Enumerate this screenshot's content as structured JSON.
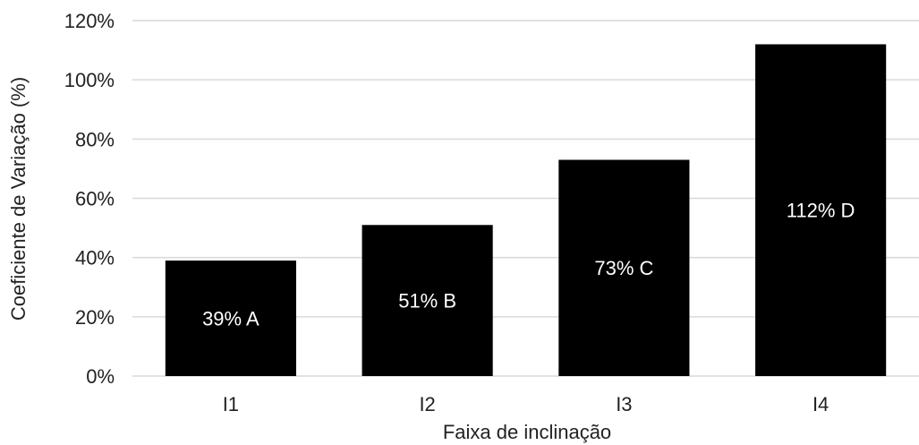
{
  "chart_data": {
    "type": "bar",
    "categories": [
      "I1",
      "I2",
      "I3",
      "I4"
    ],
    "values": [
      39,
      51,
      73,
      112
    ],
    "data_labels": [
      "39% A",
      "51% B",
      "73% C",
      "112% D"
    ],
    "xlabel": "Faixa de inclinação",
    "ylabel": "Coeficiente de Variação (%)",
    "ylim": [
      0,
      120
    ],
    "yticks": [
      0,
      20,
      40,
      60,
      80,
      100,
      120
    ],
    "ytick_labels": [
      "0%",
      "20%",
      "40%",
      "60%",
      "80%",
      "100%",
      "120%"
    ],
    "grid": true,
    "legend": "none",
    "colors": {
      "bar": "#000000",
      "grid": "#d9d9d9",
      "axis": "#d9d9d9",
      "label": "#ffffff",
      "text": "#222222"
    }
  }
}
